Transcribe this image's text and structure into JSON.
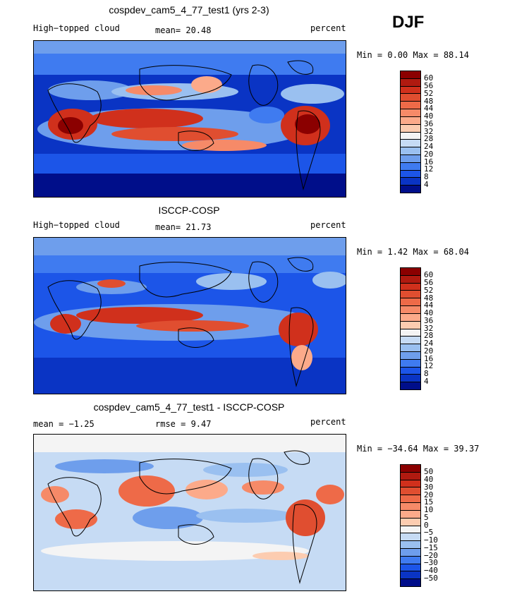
{
  "season": "DJF",
  "panels": [
    {
      "title": "cospdev_cam5_4_77_test1 (yrs 2-3)",
      "left_text": "High−topped cloud",
      "center_text": "mean=  20.48",
      "right_text": "percent",
      "minmax": "Min =   0.00 Max =  88.14",
      "colorbar": {
        "levels": [
          "60",
          "56",
          "52",
          "48",
          "44",
          "40",
          "36",
          "32",
          "28",
          "24",
          "20",
          "16",
          "12",
          "8",
          "4"
        ],
        "colors": [
          "#8b0000",
          "#b01a10",
          "#d0301c",
          "#e04e30",
          "#ee6a48",
          "#f68a68",
          "#fcaa8a",
          "#fcccb0",
          "#f4f4f4",
          "#c6dbf4",
          "#9ac0f0",
          "#6e9eec",
          "#3f7bf0",
          "#1c55e8",
          "#0a34c4",
          "#000e8a"
        ]
      }
    },
    {
      "title": "ISCCP-COSP",
      "left_text": "High−topped cloud",
      "center_text": "mean=  21.73",
      "right_text": "percent",
      "minmax": "Min =   1.42 Max =  68.04",
      "colorbar": {
        "levels": [
          "60",
          "56",
          "52",
          "48",
          "44",
          "40",
          "36",
          "32",
          "28",
          "24",
          "20",
          "16",
          "12",
          "8",
          "4"
        ],
        "colors": [
          "#8b0000",
          "#b01a10",
          "#d0301c",
          "#e04e30",
          "#ee6a48",
          "#f68a68",
          "#fcaa8a",
          "#fcccb0",
          "#f4f4f4",
          "#c6dbf4",
          "#9ac0f0",
          "#6e9eec",
          "#3f7bf0",
          "#1c55e8",
          "#0a34c4",
          "#000e8a"
        ]
      }
    },
    {
      "title": "cospdev_cam5_4_77_test1 - ISCCP-COSP",
      "left_text": "mean =  −1.25",
      "center_text": "rmse =   9.47",
      "right_text": "percent",
      "minmax": "Min = −34.64 Max =  39.37",
      "colorbar": {
        "levels": [
          "50",
          "40",
          "30",
          "20",
          "15",
          "10",
          "5",
          "0",
          "−5",
          "−10",
          "−15",
          "−20",
          "−30",
          "−40",
          "−50"
        ],
        "colors": [
          "#8b0000",
          "#b01a10",
          "#d0301c",
          "#e04e30",
          "#ee6a48",
          "#f68a68",
          "#fcaa8a",
          "#fcccb0",
          "#f4f4f4",
          "#c6dbf4",
          "#9ac0f0",
          "#6e9eec",
          "#3f7bf0",
          "#1c55e8",
          "#0a34c4",
          "#000e8a"
        ]
      }
    }
  ]
}
